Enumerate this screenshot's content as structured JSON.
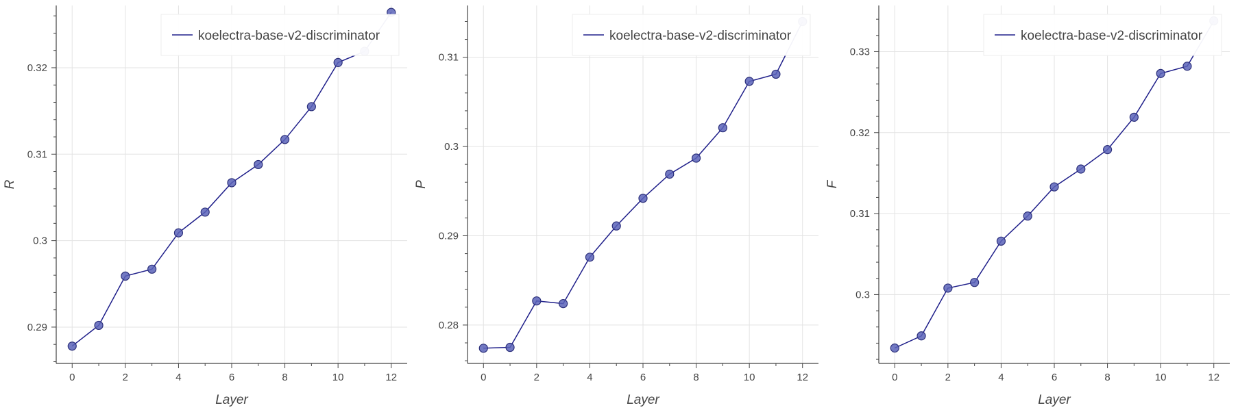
{
  "chart_data": [
    {
      "type": "line",
      "xlabel": "Layer",
      "ylabel": "R",
      "x": [
        0,
        1,
        2,
        3,
        4,
        5,
        6,
        7,
        8,
        9,
        10,
        11,
        12
      ],
      "xticks": [
        0,
        2,
        4,
        6,
        8,
        10,
        12
      ],
      "xlim": [
        -0.6,
        12.6
      ],
      "yticks": [
        0.29,
        0.3,
        0.31,
        0.32
      ],
      "ytick_labels": [
        "0.29",
        "0.3",
        "0.31",
        "0.32"
      ],
      "ylim": [
        0.2858,
        0.3272
      ],
      "grid": true,
      "legend_position": "top-right",
      "series": [
        {
          "name": "koelectra-base-v2-discriminator",
          "values": [
            0.2878,
            0.2902,
            0.2959,
            0.2967,
            0.3009,
            0.3033,
            0.3067,
            0.3088,
            0.3117,
            0.3155,
            0.3206,
            0.3219,
            0.3264
          ]
        }
      ]
    },
    {
      "type": "line",
      "xlabel": "Layer",
      "ylabel": "P",
      "x": [
        0,
        1,
        2,
        3,
        4,
        5,
        6,
        7,
        8,
        9,
        10,
        11,
        12
      ],
      "xticks": [
        0,
        2,
        4,
        6,
        8,
        10,
        12
      ],
      "xlim": [
        -0.6,
        12.6
      ],
      "yticks": [
        0.28,
        0.29,
        0.3,
        0.31
      ],
      "ytick_labels": [
        "0.28",
        "0.29",
        "0.3",
        "0.31"
      ],
      "ylim": [
        0.2757,
        0.3158
      ],
      "grid": true,
      "legend_position": "top-right",
      "series": [
        {
          "name": "koelectra-base-v2-discriminator",
          "values": [
            0.2774,
            0.2775,
            0.2827,
            0.2824,
            0.2876,
            0.2911,
            0.2942,
            0.2969,
            0.2987,
            0.3021,
            0.3073,
            0.3081,
            0.314
          ]
        }
      ]
    },
    {
      "type": "line",
      "xlabel": "Layer",
      "ylabel": "F",
      "x": [
        0,
        1,
        2,
        3,
        4,
        5,
        6,
        7,
        8,
        9,
        10,
        11,
        12
      ],
      "xticks": [
        0,
        2,
        4,
        6,
        8,
        10,
        12
      ],
      "xlim": [
        -0.6,
        12.6
      ],
      "yticks": [
        0.3,
        0.31,
        0.32,
        0.33
      ],
      "ytick_labels": [
        "0.3",
        "0.31",
        "0.32",
        "0.33"
      ],
      "ylim": [
        0.2915,
        0.3357
      ],
      "grid": true,
      "legend_position": "top-right",
      "series": [
        {
          "name": "koelectra-base-v2-discriminator",
          "values": [
            0.2934,
            0.2949,
            0.3008,
            0.3015,
            0.3066,
            0.3097,
            0.3133,
            0.3155,
            0.3179,
            0.3219,
            0.3273,
            0.3282,
            0.3338
          ]
        }
      ]
    }
  ],
  "colors": {
    "line": "#1f1f8a",
    "marker_fill": "#5b63b8",
    "marker_stroke": "#2b2f7a",
    "grid": "#e3e3e3",
    "axis": "#444444",
    "legend_border": "#eeeeee"
  }
}
